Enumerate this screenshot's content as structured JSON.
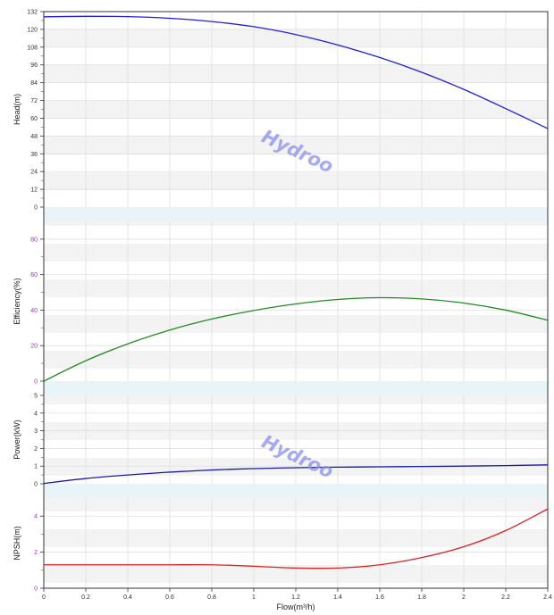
{
  "chart_data": {
    "type": "line",
    "watermark": "Hydroo",
    "x": {
      "label": "Flow(m³/h)",
      "range": [
        0,
        2.4
      ],
      "ticks": [
        "0",
        "0.2",
        "0.4",
        "0.6",
        "0.8",
        "1",
        "1.2",
        "1.4",
        "1.6",
        "1.8",
        "2",
        "2.2",
        "2.4"
      ]
    },
    "panels": [
      {
        "id": "head",
        "ylabel": "Head(m)",
        "ylim": [
          0,
          132
        ],
        "yticks": [
          "0",
          "12",
          "24",
          "36",
          "48",
          "60",
          "72",
          "84",
          "96",
          "108",
          "120",
          "132"
        ],
        "tick_color": "#333333",
        "line_color": "#1f1fe0",
        "x": [
          0,
          0.2,
          0.4,
          0.6,
          0.8,
          1.0,
          1.2,
          1.4,
          1.6,
          1.8,
          2.0,
          2.2,
          2.4
        ],
        "y": [
          128.5,
          128.8,
          128.6,
          127.5,
          125.3,
          121.8,
          116.5,
          109.5,
          101,
          91,
          79.5,
          66.5,
          53
        ]
      },
      {
        "id": "efficiency",
        "ylabel": "Efficiency(%)",
        "ylim": [
          0,
          90
        ],
        "yticks": [
          "0",
          "20",
          "40",
          "60",
          "80"
        ],
        "tick_color": "#9933cc",
        "line_color": "#228b22",
        "x": [
          0,
          0.2,
          0.4,
          0.6,
          0.8,
          1.0,
          1.2,
          1.4,
          1.6,
          1.8,
          2.0,
          2.2,
          2.4
        ],
        "y": [
          0,
          11.5,
          21,
          28.8,
          35,
          39.8,
          43.5,
          46,
          47,
          46.3,
          44,
          40,
          34.3
        ]
      },
      {
        "id": "power",
        "ylabel": "Power(kW)",
        "ylim": [
          0,
          5
        ],
        "yticks": [
          "0",
          "1",
          "2",
          "3",
          "4",
          "5"
        ],
        "tick_color": "#333333",
        "line_color": "#1a1aa8",
        "x": [
          0,
          0.2,
          0.4,
          0.6,
          0.8,
          1.0,
          1.2,
          1.4,
          1.6,
          1.8,
          2.0,
          2.2,
          2.4
        ],
        "y": [
          0.02,
          0.3,
          0.5,
          0.66,
          0.78,
          0.86,
          0.91,
          0.94,
          0.96,
          0.98,
          1.0,
          1.03,
          1.07
        ]
      },
      {
        "id": "npsh",
        "ylabel": "NPSH(m)",
        "ylim": [
          0,
          5
        ],
        "yticks": [
          "0",
          "2",
          "4"
        ],
        "tick_color": "#9933cc",
        "line_color": "#e02020",
        "x": [
          0,
          0.2,
          0.4,
          0.6,
          0.8,
          1.0,
          1.2,
          1.4,
          1.6,
          1.8,
          2.0,
          2.2,
          2.4
        ],
        "y": [
          1.3,
          1.3,
          1.3,
          1.3,
          1.3,
          1.22,
          1.12,
          1.12,
          1.3,
          1.7,
          2.3,
          3.2,
          4.4
        ]
      }
    ]
  }
}
